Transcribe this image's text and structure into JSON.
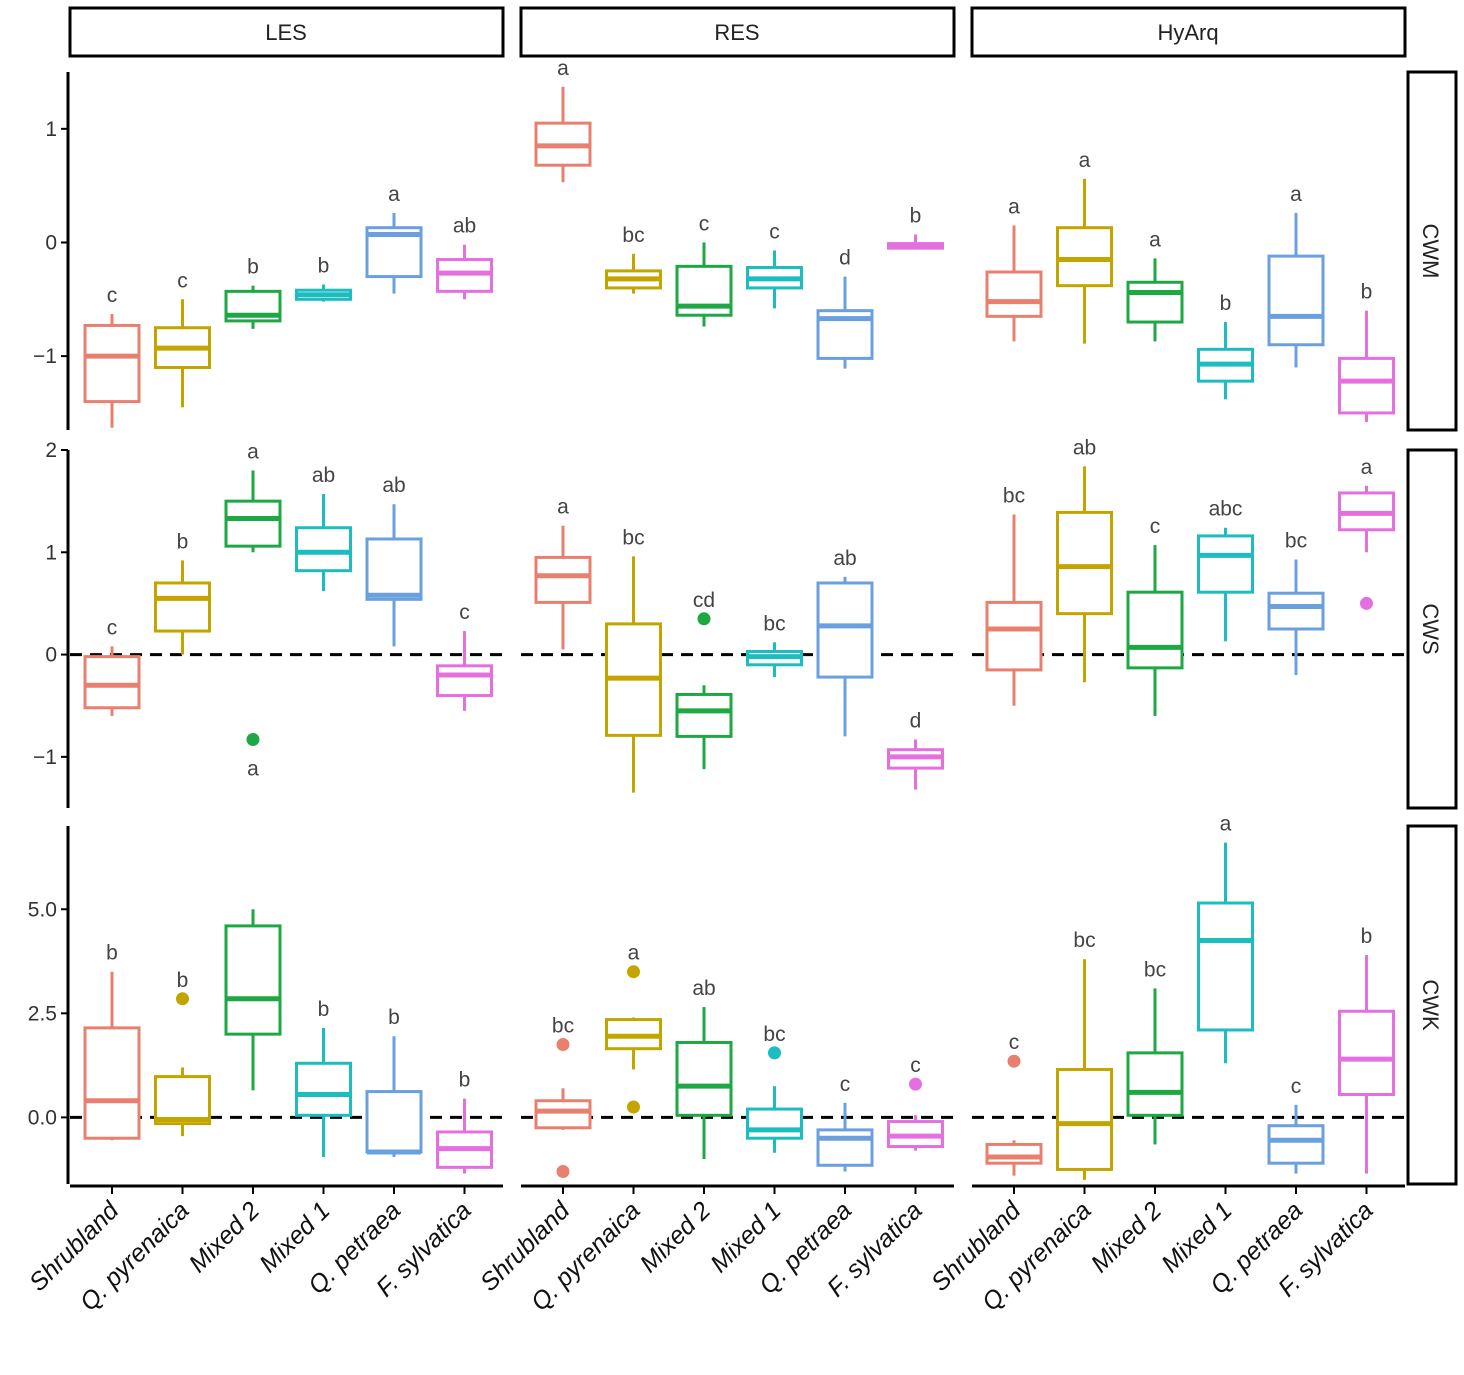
{
  "chart_data": {
    "type": "boxplot",
    "columns": [
      "LES",
      "RES",
      "HyArq"
    ],
    "rows": [
      "CWM",
      "CWS",
      "CWK"
    ],
    "categories": [
      "Shrubland",
      "Q. pyrenaica",
      "Mixed 2",
      "Mixed 1",
      "Q. petraea",
      "F. sylvatica"
    ],
    "colors": [
      "#e8806f",
      "#c4a500",
      "#1ea843",
      "#1cbcc0",
      "#6a9fe0",
      "#e66fe0"
    ],
    "row_axes": [
      {
        "name": "CWM",
        "ylim": [
          -1.65,
          1.5
        ],
        "ticks": [
          1,
          0,
          -1
        ],
        "tick_labels": [
          "1",
          "0",
          "−1"
        ],
        "zero_line": false
      },
      {
        "name": "CWS",
        "ylim": [
          -1.5,
          2.0
        ],
        "ticks": [
          2,
          1,
          0,
          -1
        ],
        "tick_labels": [
          "2",
          "1",
          "0",
          "−1"
        ],
        "zero_line": true
      },
      {
        "name": "CWK",
        "ylim": [
          -1.6,
          7.0
        ],
        "ticks": [
          5,
          2.5,
          0
        ],
        "tick_labels": [
          "5.0",
          "2.5",
          "0.0"
        ],
        "zero_line": true
      }
    ],
    "panels": [
      {
        "row": "CWM",
        "col": "LES",
        "boxes": [
          {
            "q1": -1.4,
            "med": -1.0,
            "q3": -0.73,
            "lo": -1.63,
            "hi": -0.63,
            "out": [],
            "letter": "c"
          },
          {
            "q1": -1.1,
            "med": -0.93,
            "q3": -0.75,
            "lo": -1.45,
            "hi": -0.5,
            "out": [],
            "letter": "c"
          },
          {
            "q1": -0.69,
            "med": -0.64,
            "q3": -0.43,
            "lo": -0.76,
            "hi": -0.38,
            "out": [],
            "letter": "b"
          },
          {
            "q1": -0.5,
            "med": -0.46,
            "q3": -0.42,
            "lo": -0.52,
            "hi": -0.37,
            "out": [],
            "letter": "b"
          },
          {
            "q1": -0.3,
            "med": 0.07,
            "q3": 0.13,
            "lo": -0.45,
            "hi": 0.26,
            "out": [],
            "letter": "a"
          },
          {
            "q1": -0.43,
            "med": -0.27,
            "q3": -0.15,
            "lo": -0.5,
            "hi": -0.02,
            "out": [],
            "letter": "ab"
          }
        ]
      },
      {
        "row": "CWM",
        "col": "RES",
        "boxes": [
          {
            "q1": 0.68,
            "med": 0.85,
            "q3": 1.05,
            "lo": 0.53,
            "hi": 1.37,
            "out": [],
            "letter": "a"
          },
          {
            "q1": -0.4,
            "med": -0.32,
            "q3": -0.25,
            "lo": -0.45,
            "hi": -0.1,
            "out": [],
            "letter": "bc"
          },
          {
            "q1": -0.64,
            "med": -0.56,
            "q3": -0.21,
            "lo": -0.74,
            "hi": 0.0,
            "out": [],
            "letter": "c"
          },
          {
            "q1": -0.4,
            "med": -0.32,
            "q3": -0.22,
            "lo": -0.58,
            "hi": -0.07,
            "out": [],
            "letter": "c"
          },
          {
            "q1": -1.02,
            "med": -0.67,
            "q3": -0.6,
            "lo": -1.11,
            "hi": -0.3,
            "out": [],
            "letter": "d"
          },
          {
            "q1": -0.05,
            "med": -0.03,
            "q3": -0.01,
            "lo": -0.06,
            "hi": 0.07,
            "out": [],
            "letter": "b"
          }
        ]
      },
      {
        "row": "CWM",
        "col": "HyArq",
        "boxes": [
          {
            "q1": -0.65,
            "med": -0.52,
            "q3": -0.26,
            "lo": -0.87,
            "hi": 0.15,
            "out": [],
            "letter": "a"
          },
          {
            "q1": -0.38,
            "med": -0.15,
            "q3": 0.13,
            "lo": -0.89,
            "hi": 0.56,
            "out": [],
            "letter": "a"
          },
          {
            "q1": -0.7,
            "med": -0.44,
            "q3": -0.35,
            "lo": -0.87,
            "hi": -0.14,
            "out": [],
            "letter": "a"
          },
          {
            "q1": -1.22,
            "med": -1.07,
            "q3": -0.94,
            "lo": -1.38,
            "hi": -0.7,
            "out": [],
            "letter": "b"
          },
          {
            "q1": -0.9,
            "med": -0.65,
            "q3": -0.12,
            "lo": -1.1,
            "hi": 0.26,
            "out": [],
            "letter": "a"
          },
          {
            "q1": -1.5,
            "med": -1.22,
            "q3": -1.02,
            "lo": -1.58,
            "hi": -0.6,
            "out": [],
            "letter": "b"
          }
        ]
      },
      {
        "row": "CWS",
        "col": "LES",
        "boxes": [
          {
            "q1": -0.52,
            "med": -0.3,
            "q3": -0.02,
            "lo": -0.6,
            "hi": 0.08,
            "out": [],
            "letter": "c"
          },
          {
            "q1": 0.23,
            "med": 0.55,
            "q3": 0.7,
            "lo": 0.0,
            "hi": 0.92,
            "out": [],
            "letter": "b"
          },
          {
            "q1": 1.06,
            "med": 1.33,
            "q3": 1.5,
            "lo": 1.0,
            "hi": 1.8,
            "out": [
              -0.83
            ],
            "letter": "a",
            "out_letter": "a"
          },
          {
            "q1": 0.82,
            "med": 1.0,
            "q3": 1.24,
            "lo": 0.62,
            "hi": 1.57,
            "out": [],
            "letter": "ab"
          },
          {
            "q1": 0.54,
            "med": 0.58,
            "q3": 1.13,
            "lo": 0.08,
            "hi": 1.47,
            "out": [],
            "letter": "ab"
          },
          {
            "q1": -0.4,
            "med": -0.2,
            "q3": -0.11,
            "lo": -0.55,
            "hi": 0.23,
            "out": [],
            "letter": "c"
          }
        ]
      },
      {
        "row": "CWS",
        "col": "RES",
        "boxes": [
          {
            "q1": 0.51,
            "med": 0.77,
            "q3": 0.95,
            "lo": 0.05,
            "hi": 1.26,
            "out": [],
            "letter": "a"
          },
          {
            "q1": -0.79,
            "med": -0.23,
            "q3": 0.3,
            "lo": -1.35,
            "hi": 0.96,
            "out": [],
            "letter": "bc"
          },
          {
            "q1": -0.8,
            "med": -0.55,
            "q3": -0.39,
            "lo": -1.12,
            "hi": -0.3,
            "out": [
              0.35
            ],
            "letter": "cd"
          },
          {
            "q1": -0.1,
            "med": -0.02,
            "q3": 0.03,
            "lo": -0.22,
            "hi": 0.12,
            "out": [],
            "letter": "bc"
          },
          {
            "q1": -0.22,
            "med": 0.28,
            "q3": 0.7,
            "lo": -0.8,
            "hi": 0.76,
            "out": [],
            "letter": "ab"
          },
          {
            "q1": -1.11,
            "med": -1.0,
            "q3": -0.93,
            "lo": -1.32,
            "hi": -0.83,
            "out": [],
            "letter": "d"
          }
        ]
      },
      {
        "row": "CWS",
        "col": "HyArq",
        "boxes": [
          {
            "q1": -0.15,
            "med": 0.25,
            "q3": 0.51,
            "lo": -0.5,
            "hi": 1.37,
            "out": [],
            "letter": "bc"
          },
          {
            "q1": 0.4,
            "med": 0.86,
            "q3": 1.39,
            "lo": -0.27,
            "hi": 1.84,
            "out": [],
            "letter": "ab"
          },
          {
            "q1": -0.13,
            "med": 0.07,
            "q3": 0.61,
            "lo": -0.6,
            "hi": 1.07,
            "out": [],
            "letter": "c"
          },
          {
            "q1": 0.61,
            "med": 0.97,
            "q3": 1.16,
            "lo": 0.13,
            "hi": 1.24,
            "out": [],
            "letter": "abc"
          },
          {
            "q1": 0.25,
            "med": 0.47,
            "q3": 0.6,
            "lo": -0.2,
            "hi": 0.93,
            "out": [],
            "letter": "bc"
          },
          {
            "q1": 1.22,
            "med": 1.38,
            "q3": 1.58,
            "lo": 1.0,
            "hi": 1.65,
            "out": [
              0.5
            ],
            "letter": "a"
          }
        ]
      },
      {
        "row": "CWK",
        "col": "LES",
        "boxes": [
          {
            "q1": -0.5,
            "med": 0.4,
            "q3": 2.15,
            "lo": -0.55,
            "hi": 3.5,
            "out": [],
            "letter": "b"
          },
          {
            "q1": -0.15,
            "med": -0.05,
            "q3": 0.98,
            "lo": -0.45,
            "hi": 1.2,
            "out": [
              2.85
            ],
            "letter": "b"
          },
          {
            "q1": 2.0,
            "med": 2.85,
            "q3": 4.6,
            "lo": 0.65,
            "hi": 5.0,
            "out": [],
            "letter": ""
          },
          {
            "q1": 0.05,
            "med": 0.55,
            "q3": 1.3,
            "lo": -0.95,
            "hi": 2.15,
            "out": [],
            "letter": "b"
          },
          {
            "q1": -0.83,
            "med": -0.83,
            "q3": 0.62,
            "lo": -0.95,
            "hi": 1.95,
            "out": [],
            "letter": "b"
          },
          {
            "q1": -1.2,
            "med": -0.75,
            "q3": -0.35,
            "lo": -1.35,
            "hi": 0.45,
            "out": [],
            "letter": "b"
          }
        ]
      },
      {
        "row": "CWK",
        "col": "RES",
        "boxes": [
          {
            "q1": -0.25,
            "med": 0.15,
            "q3": 0.4,
            "lo": -0.3,
            "hi": 0.7,
            "out": [
              1.75,
              -1.3
            ],
            "letter": "bc"
          },
          {
            "q1": 1.65,
            "med": 1.95,
            "q3": 2.35,
            "lo": 1.15,
            "hi": 2.4,
            "out": [
              3.5,
              0.25
            ],
            "letter": "a"
          },
          {
            "q1": 0.05,
            "med": 0.75,
            "q3": 1.8,
            "lo": -1.0,
            "hi": 2.65,
            "out": [],
            "letter": "ab"
          },
          {
            "q1": -0.5,
            "med": -0.3,
            "q3": 0.2,
            "lo": -0.85,
            "hi": 0.75,
            "out": [
              1.55
            ],
            "letter": "bc"
          },
          {
            "q1": -1.15,
            "med": -0.5,
            "q3": -0.3,
            "lo": -1.3,
            "hi": 0.35,
            "out": [],
            "letter": "c"
          },
          {
            "q1": -0.7,
            "med": -0.45,
            "q3": -0.1,
            "lo": -0.8,
            "hi": 0.05,
            "out": [
              0.8
            ],
            "letter": "c"
          }
        ]
      },
      {
        "row": "CWK",
        "col": "HyArq",
        "boxes": [
          {
            "q1": -1.1,
            "med": -0.95,
            "q3": -0.65,
            "lo": -1.4,
            "hi": -0.55,
            "out": [
              1.35
            ],
            "letter": "c"
          },
          {
            "q1": -1.25,
            "med": -0.15,
            "q3": 1.15,
            "lo": -1.5,
            "hi": 3.8,
            "out": [],
            "letter": "bc"
          },
          {
            "q1": 0.05,
            "med": 0.6,
            "q3": 1.55,
            "lo": -0.65,
            "hi": 3.1,
            "out": [],
            "letter": "bc"
          },
          {
            "q1": 2.1,
            "med": 4.25,
            "q3": 5.15,
            "lo": 1.3,
            "hi": 6.6,
            "out": [],
            "letter": "a"
          },
          {
            "q1": -1.1,
            "med": -0.55,
            "q3": -0.2,
            "lo": -1.35,
            "hi": 0.3,
            "out": [],
            "letter": "c"
          },
          {
            "q1": 0.55,
            "med": 1.4,
            "q3": 2.55,
            "lo": -1.35,
            "hi": 3.9,
            "out": [],
            "letter": "b"
          }
        ]
      }
    ]
  }
}
